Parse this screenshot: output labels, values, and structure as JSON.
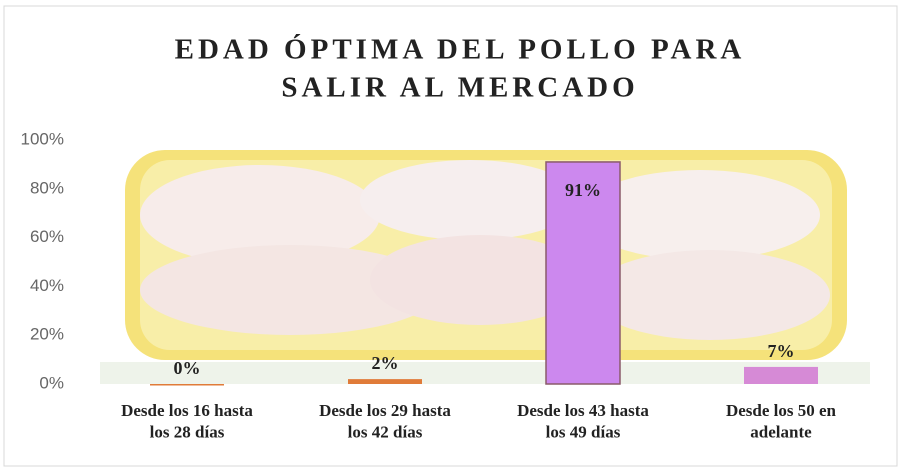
{
  "chart_data": {
    "type": "bar",
    "title": [
      "EDAD ÓPTIMA DEL POLLO PARA",
      "SALIR AL MERCADO"
    ],
    "categories": [
      "Desde los 16 hasta\nlos 28 días",
      "Desde los 29 hasta\nlos 42 días",
      "Desde los 43 hasta\nlos 49 días",
      "Desde los 50  en\nadelante"
    ],
    "values": [
      0,
      2,
      91,
      7
    ],
    "value_labels": [
      "0%",
      "2%",
      "91%",
      "7%"
    ],
    "colors": [
      "#e07b39",
      "#e07b39",
      "#cc88ee",
      "#d68ad6"
    ],
    "ylim": [
      0,
      100
    ],
    "yticks": [
      {
        "value": 0,
        "label": "0%"
      },
      {
        "value": 20,
        "label": "20%"
      },
      {
        "value": 40,
        "label": "40%"
      },
      {
        "value": 60,
        "label": "60%"
      },
      {
        "value": 80,
        "label": "80%"
      },
      {
        "value": 100,
        "label": "100%"
      }
    ]
  }
}
